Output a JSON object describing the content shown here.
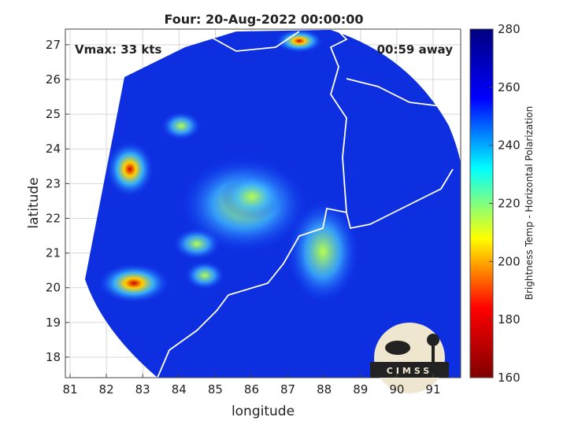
{
  "chart_data": {
    "type": "map",
    "title": "Four: 20-Aug-2022 00:00:00",
    "annotations": [
      "Vmax: 33 kts",
      "00:59 away"
    ],
    "x_label": "longitude",
    "y_label": "latitude",
    "xlim": [
      80.87,
      91.76
    ],
    "xticks": [
      81,
      82,
      83,
      84,
      85,
      86,
      87,
      88,
      89,
      90,
      91
    ],
    "ylim": [
      17.41,
      27.45
    ],
    "yticks": [
      18,
      19,
      20,
      21,
      22,
      23,
      24,
      25,
      26,
      27
    ],
    "grid": true,
    "colorbar": {
      "label": "Brightness Temp - Horizontal Polarization",
      "lim": [
        160,
        280
      ],
      "ticks": [
        160,
        180,
        200,
        220,
        240,
        260,
        280
      ],
      "colors": [
        "#800000",
        "#ff0000",
        "#ffff00",
        "#00ffff",
        "#0000ff",
        "#000080"
      ]
    },
    "logo": "CIMSS"
  }
}
